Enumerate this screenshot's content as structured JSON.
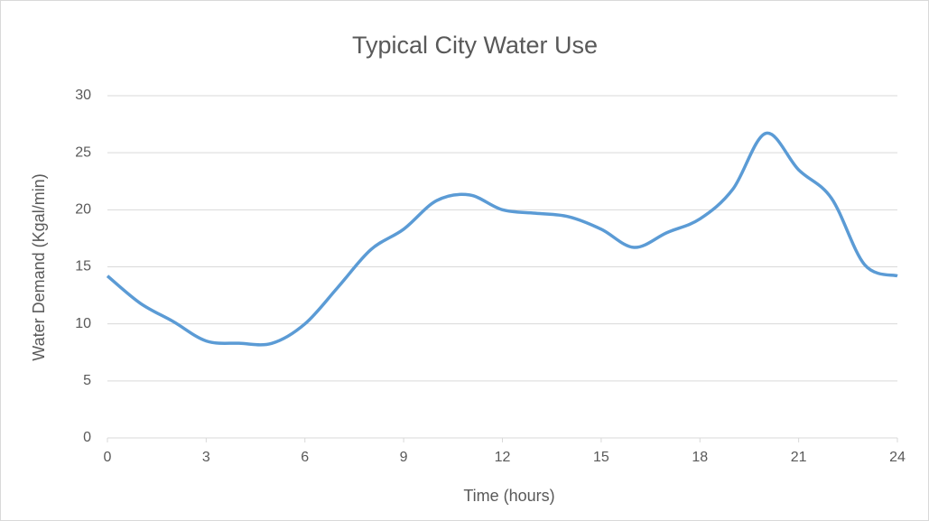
{
  "chart_data": {
    "type": "line",
    "title": "Typical City Water Use",
    "x_label": "Time (hours)",
    "y_label": "Water Demand (Kgal/min)",
    "x": [
      0,
      1,
      2,
      3,
      4,
      5,
      6,
      7,
      8,
      9,
      10,
      11,
      12,
      13,
      14,
      15,
      16,
      17,
      18,
      19,
      20,
      21,
      22,
      23,
      24
    ],
    "series": [
      {
        "name": "Water Demand",
        "color": "#5b9bd5",
        "values": [
          14.2,
          11.8,
          10.2,
          8.5,
          8.3,
          8.3,
          10.0,
          13.2,
          16.5,
          18.3,
          20.8,
          21.3,
          20.0,
          19.7,
          19.4,
          18.3,
          16.7,
          18.0,
          19.2,
          21.8,
          26.7,
          23.5,
          21.0,
          15.2,
          14.2
        ]
      }
    ],
    "xlim": [
      0,
      24
    ],
    "xticks": [
      0,
      3,
      6,
      9,
      12,
      15,
      18,
      21,
      24
    ],
    "ylim": [
      0,
      30
    ],
    "yticks": [
      0,
      5,
      10,
      15,
      20,
      25,
      30
    ],
    "grid": true,
    "smooth": true
  }
}
